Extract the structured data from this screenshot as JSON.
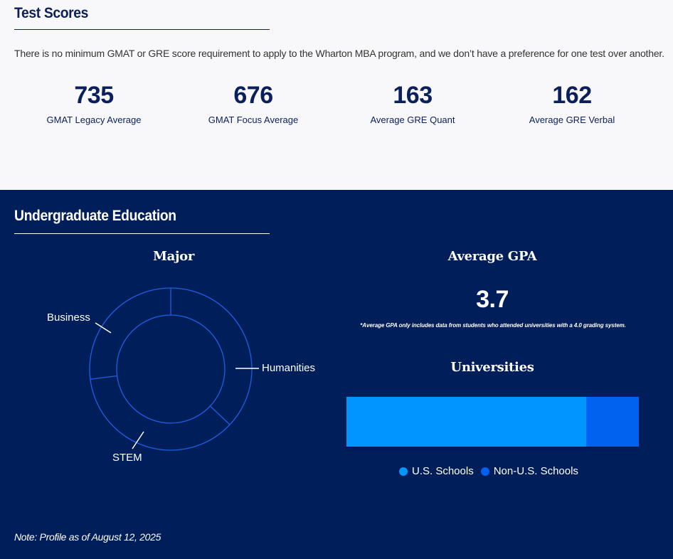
{
  "test_scores": {
    "title": "Test Scores",
    "intro": "There is no minimum GMAT or GRE score requirement to apply to the Wharton MBA program, and we don’t have a preference for one test over another.",
    "stats": [
      {
        "value": "735",
        "label": "GMAT Legacy Average"
      },
      {
        "value": "676",
        "label": "GMAT Focus Average"
      },
      {
        "value": "163",
        "label": "Average GRE Quant"
      },
      {
        "value": "162",
        "label": "Average GRE Verbal"
      }
    ]
  },
  "undergrad": {
    "title": "Undergraduate Education",
    "major": {
      "heading": "Major",
      "segments": [
        "Business",
        "Humanities",
        "STEM"
      ]
    },
    "gpa": {
      "heading": "Average GPA",
      "value": "3.7",
      "note": "*Average GPA only includes data from students who attended universities with a 4.0 grading system."
    },
    "universities": {
      "heading": "Universities",
      "legend": [
        "U.S. Schools",
        "Non-U.S. Schools"
      ]
    }
  },
  "footer_note": "Note: Profile as of August 12, 2025",
  "colors": {
    "navy": "#001e5a",
    "us_blue": "#0095ff",
    "nonus_blue": "#0062ee",
    "donut_stroke": "#1f5fe0"
  },
  "chart_data": [
    {
      "type": "pie",
      "title": "Major",
      "categories": [
        "Humanities",
        "STEM",
        "Business"
      ],
      "values": [
        37,
        36,
        27
      ]
    },
    {
      "type": "bar",
      "title": "Universities",
      "categories": [
        "U.S. Schools",
        "Non-U.S. Schools"
      ],
      "values": [
        82,
        18
      ]
    }
  ]
}
